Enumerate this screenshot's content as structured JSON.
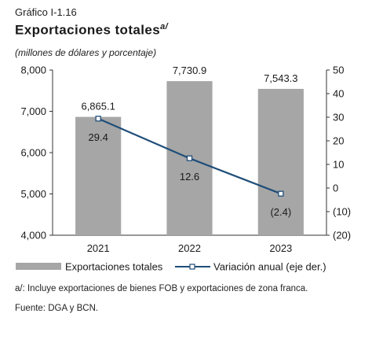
{
  "header": {
    "figure_label": "Gráfico I-1.16",
    "title": "Exportaciones totales",
    "title_note": "a/",
    "subtitle": "(millones de dólares y porcentaje)"
  },
  "chart_data": {
    "type": "bar",
    "categories": [
      "2021",
      "2022",
      "2023"
    ],
    "series": [
      {
        "name": "Exportaciones totales",
        "type": "bar",
        "axis": "left",
        "values": [
          6865.1,
          7730.9,
          7543.3
        ],
        "labels": [
          "6,865.1",
          "7,730.9",
          "7,543.3"
        ],
        "color": "#a6a6a6"
      },
      {
        "name": "Variación anual (eje der.)",
        "type": "line",
        "axis": "right",
        "values": [
          29.4,
          12.6,
          -2.4
        ],
        "labels": [
          "29.4",
          "12.6",
          "(2.4)"
        ],
        "color": "#1f4e79"
      }
    ],
    "y_left": {
      "min": 4000,
      "max": 8000,
      "ticks": [
        "4,000",
        "5,000",
        "6,000",
        "7,000",
        "8,000"
      ],
      "tick_values": [
        4000,
        5000,
        6000,
        7000,
        8000
      ]
    },
    "y_right": {
      "min": -20,
      "max": 50,
      "ticks": [
        "(20)",
        "(10)",
        "0",
        "10",
        "20",
        "30",
        "40",
        "50"
      ],
      "tick_values": [
        -20,
        -10,
        0,
        10,
        20,
        30,
        40,
        50
      ]
    },
    "grid": false,
    "legend_position": "bottom"
  },
  "footnotes": {
    "note": "a/: Incluye exportaciones de bienes FOB y exportaciones de zona franca.",
    "source": "Fuente: DGA y BCN."
  }
}
